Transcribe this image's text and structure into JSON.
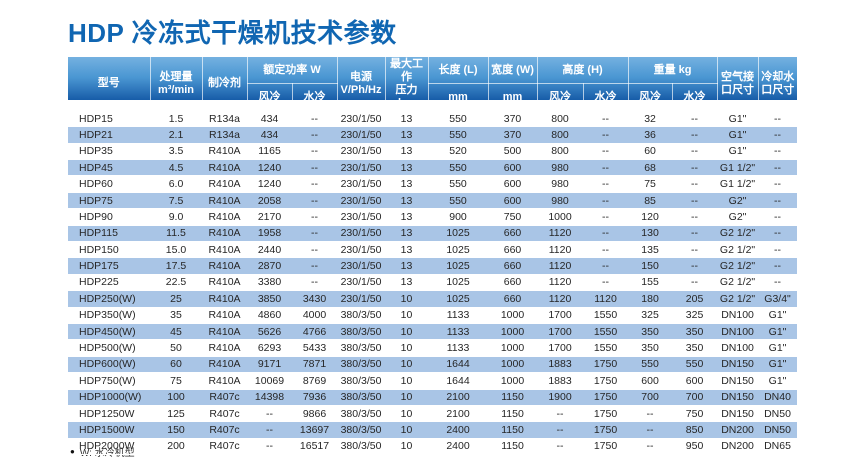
{
  "title": "HDP 冷冻式干燥机技术参数",
  "colors": {
    "title_blue": "#1066b2",
    "header_gradient_top": "#74b1e0",
    "header_gradient_bottom": "#175ca8",
    "row_stripe": "#a9c5e6"
  },
  "table": {
    "header": {
      "model": "型号",
      "capacity": [
        "处理量",
        "m³/min"
      ],
      "refrigerant": "制冷剂",
      "rated_power": "额定功率 W",
      "air_cooled": "风冷",
      "water_cooled": "水冷",
      "power_supply": [
        "电源",
        "V/Ph/Hz"
      ],
      "max_pressure": [
        "最大工作",
        "压力 bar"
      ],
      "length": "长度 (L)",
      "width": "宽度 (W)",
      "mm": "mm",
      "height": "高度 (H)",
      "weight": "重量 kg",
      "air_port": [
        "空气接",
        "口尺寸"
      ],
      "water_port": [
        "冷却水",
        "口尺寸"
      ]
    },
    "rows": [
      [
        "HDP15",
        "1.5",
        "R134a",
        "434",
        "--",
        "230/1/50",
        "13",
        "550",
        "370",
        "800",
        "--",
        "32",
        "--",
        "G1\"",
        "--"
      ],
      [
        "HDP21",
        "2.1",
        "R134a",
        "434",
        "--",
        "230/1/50",
        "13",
        "550",
        "370",
        "800",
        "--",
        "36",
        "--",
        "G1\"",
        "--"
      ],
      [
        "HDP35",
        "3.5",
        "R410A",
        "1165",
        "--",
        "230/1/50",
        "13",
        "520",
        "500",
        "800",
        "--",
        "60",
        "--",
        "G1\"",
        "--"
      ],
      [
        "HDP45",
        "4.5",
        "R410A",
        "1240",
        "--",
        "230/1/50",
        "13",
        "550",
        "600",
        "980",
        "--",
        "68",
        "--",
        "G1 1/2\"",
        "--"
      ],
      [
        "HDP60",
        "6.0",
        "R410A",
        "1240",
        "--",
        "230/1/50",
        "13",
        "550",
        "600",
        "980",
        "--",
        "75",
        "--",
        "G1 1/2\"",
        "--"
      ],
      [
        "HDP75",
        "7.5",
        "R410A",
        "2058",
        "--",
        "230/1/50",
        "13",
        "550",
        "600",
        "980",
        "--",
        "85",
        "--",
        "G2\"",
        "--"
      ],
      [
        "HDP90",
        "9.0",
        "R410A",
        "2170",
        "--",
        "230/1/50",
        "13",
        "900",
        "750",
        "1000",
        "--",
        "120",
        "--",
        "G2\"",
        "--"
      ],
      [
        "HDP115",
        "11.5",
        "R410A",
        "1958",
        "--",
        "230/1/50",
        "13",
        "1025",
        "660",
        "1120",
        "--",
        "130",
        "--",
        "G2 1/2\"",
        "--"
      ],
      [
        "HDP150",
        "15.0",
        "R410A",
        "2440",
        "--",
        "230/1/50",
        "13",
        "1025",
        "660",
        "1120",
        "--",
        "135",
        "--",
        "G2 1/2\"",
        "--"
      ],
      [
        "HDP175",
        "17.5",
        "R410A",
        "2870",
        "--",
        "230/1/50",
        "13",
        "1025",
        "660",
        "1120",
        "--",
        "150",
        "--",
        "G2 1/2\"",
        "--"
      ],
      [
        "HDP225",
        "22.5",
        "R410A",
        "3380",
        "--",
        "230/1/50",
        "13",
        "1025",
        "660",
        "1120",
        "--",
        "155",
        "--",
        "G2 1/2\"",
        "--"
      ],
      [
        "HDP250(W)",
        "25",
        "R410A",
        "3850",
        "3430",
        "230/1/50",
        "10",
        "1025",
        "660",
        "1120",
        "1120",
        "180",
        "205",
        "G2 1/2\"",
        "G3/4\""
      ],
      [
        "HDP350(W)",
        "35",
        "R410A",
        "4860",
        "4000",
        "380/3/50",
        "10",
        "1133",
        "1000",
        "1700",
        "1550",
        "325",
        "325",
        "DN100",
        "G1\""
      ],
      [
        "HDP450(W)",
        "45",
        "R410A",
        "5626",
        "4766",
        "380/3/50",
        "10",
        "1133",
        "1000",
        "1700",
        "1550",
        "350",
        "350",
        "DN100",
        "G1\""
      ],
      [
        "HDP500(W)",
        "50",
        "R410A",
        "6293",
        "5433",
        "380/3/50",
        "10",
        "1133",
        "1000",
        "1700",
        "1550",
        "350",
        "350",
        "DN100",
        "G1\""
      ],
      [
        "HDP600(W)",
        "60",
        "R410A",
        "9171",
        "7871",
        "380/3/50",
        "10",
        "1644",
        "1000",
        "1883",
        "1750",
        "550",
        "550",
        "DN150",
        "G1\""
      ],
      [
        "HDP750(W)",
        "75",
        "R410A",
        "10069",
        "8769",
        "380/3/50",
        "10",
        "1644",
        "1000",
        "1883",
        "1750",
        "600",
        "600",
        "DN150",
        "G1\""
      ],
      [
        "HDP1000(W)",
        "100",
        "R407c",
        "14398",
        "7936",
        "380/3/50",
        "10",
        "2100",
        "1150",
        "1900",
        "1750",
        "700",
        "700",
        "DN150",
        "DN40"
      ],
      [
        "HDP1250W",
        "125",
        "R407c",
        "--",
        "9866",
        "380/3/50",
        "10",
        "2100",
        "1150",
        "--",
        "1750",
        "--",
        "750",
        "DN150",
        "DN50"
      ],
      [
        "HDP1500W",
        "150",
        "R407c",
        "--",
        "13697",
        "380/3/50",
        "10",
        "2400",
        "1150",
        "--",
        "1750",
        "--",
        "850",
        "DN200",
        "DN50"
      ],
      [
        "HDP2000W",
        "200",
        "R407c",
        "--",
        "16517",
        "380/3/50",
        "10",
        "2400",
        "1150",
        "--",
        "1750",
        "--",
        "950",
        "DN200",
        "DN65"
      ]
    ]
  },
  "footnote": {
    "bullet": "●",
    "text": "W: 水冷机型"
  }
}
